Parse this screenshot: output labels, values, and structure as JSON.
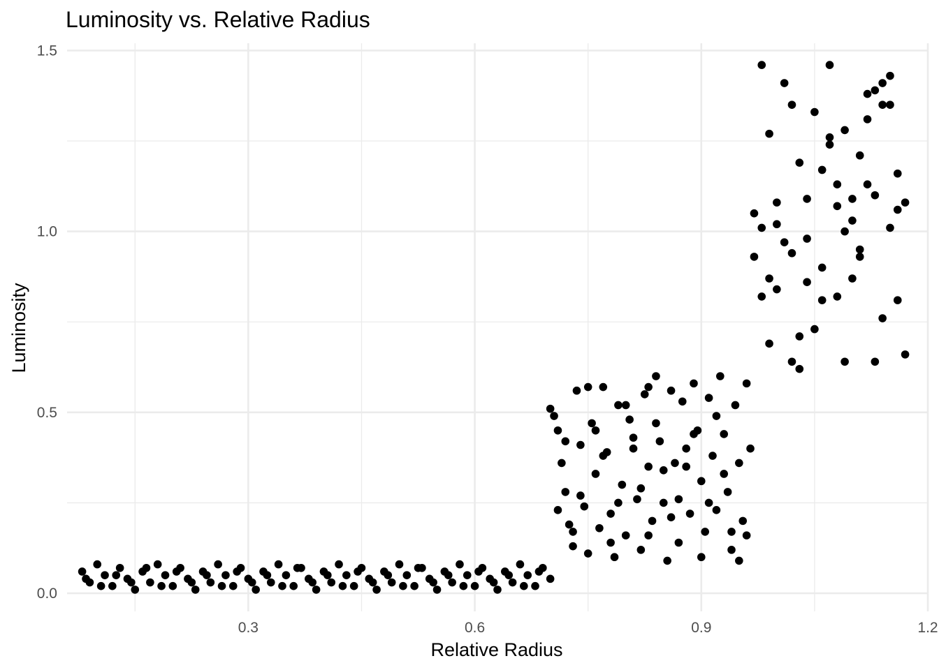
{
  "chart_data": {
    "type": "scatter",
    "title": "Luminosity vs. Relative Radius",
    "xlabel": "Relative Radius",
    "ylabel": "Luminosity",
    "xlim": [
      0.06,
      1.2
    ],
    "ylim": [
      -0.05,
      1.52
    ],
    "x_ticks": [
      0.3,
      0.6,
      0.9,
      1.2
    ],
    "x_tick_labels": [
      "0.3",
      "0.6",
      "0.9",
      "1.2"
    ],
    "y_ticks": [
      0.0,
      0.5,
      1.0,
      1.5
    ],
    "y_tick_labels": [
      "0.0",
      "0.5",
      "1.0",
      "1.5"
    ],
    "grid": true,
    "legend": "none",
    "point_color": "#000000",
    "series": [
      {
        "points": [
          [
            0.08,
            0.06
          ],
          [
            0.09,
            0.03
          ],
          [
            0.1,
            0.08
          ],
          [
            0.11,
            0.05
          ],
          [
            0.12,
            0.02
          ],
          [
            0.13,
            0.07
          ],
          [
            0.14,
            0.04
          ],
          [
            0.15,
            0.01
          ],
          [
            0.16,
            0.06
          ],
          [
            0.17,
            0.03
          ],
          [
            0.18,
            0.08
          ],
          [
            0.19,
            0.05
          ],
          [
            0.2,
            0.02
          ],
          [
            0.21,
            0.07
          ],
          [
            0.22,
            0.04
          ],
          [
            0.23,
            0.01
          ],
          [
            0.24,
            0.06
          ],
          [
            0.25,
            0.03
          ],
          [
            0.26,
            0.08
          ],
          [
            0.27,
            0.05
          ],
          [
            0.28,
            0.02
          ],
          [
            0.29,
            0.07
          ],
          [
            0.3,
            0.04
          ],
          [
            0.31,
            0.01
          ],
          [
            0.32,
            0.06
          ],
          [
            0.33,
            0.03
          ],
          [
            0.34,
            0.08
          ],
          [
            0.35,
            0.05
          ],
          [
            0.36,
            0.02
          ],
          [
            0.37,
            0.07
          ],
          [
            0.38,
            0.04
          ],
          [
            0.39,
            0.01
          ],
          [
            0.4,
            0.06
          ],
          [
            0.41,
            0.03
          ],
          [
            0.42,
            0.08
          ],
          [
            0.43,
            0.05
          ],
          [
            0.44,
            0.02
          ],
          [
            0.45,
            0.07
          ],
          [
            0.46,
            0.04
          ],
          [
            0.47,
            0.01
          ],
          [
            0.48,
            0.06
          ],
          [
            0.49,
            0.03
          ],
          [
            0.5,
            0.08
          ],
          [
            0.51,
            0.05
          ],
          [
            0.52,
            0.02
          ],
          [
            0.53,
            0.07
          ],
          [
            0.54,
            0.04
          ],
          [
            0.55,
            0.01
          ],
          [
            0.56,
            0.06
          ],
          [
            0.57,
            0.03
          ],
          [
            0.58,
            0.08
          ],
          [
            0.59,
            0.05
          ],
          [
            0.6,
            0.02
          ],
          [
            0.61,
            0.07
          ],
          [
            0.62,
            0.04
          ],
          [
            0.63,
            0.01
          ],
          [
            0.64,
            0.06
          ],
          [
            0.65,
            0.03
          ],
          [
            0.66,
            0.08
          ],
          [
            0.67,
            0.05
          ],
          [
            0.68,
            0.02
          ],
          [
            0.69,
            0.07
          ],
          [
            0.7,
            0.04
          ],
          [
            0.085,
            0.04
          ],
          [
            0.105,
            0.02
          ],
          [
            0.125,
            0.05
          ],
          [
            0.145,
            0.03
          ],
          [
            0.165,
            0.07
          ],
          [
            0.185,
            0.02
          ],
          [
            0.205,
            0.06
          ],
          [
            0.225,
            0.03
          ],
          [
            0.245,
            0.05
          ],
          [
            0.265,
            0.02
          ],
          [
            0.285,
            0.06
          ],
          [
            0.305,
            0.03
          ],
          [
            0.325,
            0.05
          ],
          [
            0.345,
            0.02
          ],
          [
            0.365,
            0.07
          ],
          [
            0.385,
            0.03
          ],
          [
            0.405,
            0.05
          ],
          [
            0.425,
            0.02
          ],
          [
            0.445,
            0.06
          ],
          [
            0.465,
            0.03
          ],
          [
            0.485,
            0.05
          ],
          [
            0.505,
            0.02
          ],
          [
            0.525,
            0.07
          ],
          [
            0.545,
            0.03
          ],
          [
            0.565,
            0.05
          ],
          [
            0.585,
            0.02
          ],
          [
            0.605,
            0.06
          ],
          [
            0.625,
            0.03
          ],
          [
            0.645,
            0.05
          ],
          [
            0.665,
            0.02
          ],
          [
            0.685,
            0.06
          ],
          [
            0.7,
            0.51
          ],
          [
            0.705,
            0.49
          ],
          [
            0.71,
            0.45
          ],
          [
            0.715,
            0.36
          ],
          [
            0.72,
            0.28
          ],
          [
            0.725,
            0.19
          ],
          [
            0.73,
            0.13
          ],
          [
            0.735,
            0.56
          ],
          [
            0.74,
            0.41
          ],
          [
            0.745,
            0.24
          ],
          [
            0.75,
            0.11
          ],
          [
            0.755,
            0.47
          ],
          [
            0.76,
            0.33
          ],
          [
            0.765,
            0.18
          ],
          [
            0.77,
            0.57
          ],
          [
            0.775,
            0.39
          ],
          [
            0.78,
            0.22
          ],
          [
            0.785,
            0.1
          ],
          [
            0.79,
            0.52
          ],
          [
            0.795,
            0.3
          ],
          [
            0.8,
            0.16
          ],
          [
            0.805,
            0.48
          ],
          [
            0.81,
            0.43
          ],
          [
            0.815,
            0.26
          ],
          [
            0.82,
            0.12
          ],
          [
            0.825,
            0.55
          ],
          [
            0.83,
            0.35
          ],
          [
            0.835,
            0.2
          ],
          [
            0.84,
            0.6
          ],
          [
            0.845,
            0.42
          ],
          [
            0.85,
            0.25
          ],
          [
            0.855,
            0.09
          ],
          [
            0.86,
            0.56
          ],
          [
            0.865,
            0.36
          ],
          [
            0.87,
            0.14
          ],
          [
            0.875,
            0.53
          ],
          [
            0.88,
            0.4
          ],
          [
            0.885,
            0.22
          ],
          [
            0.89,
            0.58
          ],
          [
            0.895,
            0.45
          ],
          [
            0.9,
            0.31
          ],
          [
            0.905,
            0.17
          ],
          [
            0.91,
            0.54
          ],
          [
            0.915,
            0.38
          ],
          [
            0.92,
            0.23
          ],
          [
            0.925,
            0.6
          ],
          [
            0.93,
            0.44
          ],
          [
            0.935,
            0.28
          ],
          [
            0.94,
            0.12
          ],
          [
            0.945,
            0.52
          ],
          [
            0.95,
            0.36
          ],
          [
            0.955,
            0.2
          ],
          [
            0.96,
            0.58
          ],
          [
            0.965,
            0.4
          ],
          [
            0.72,
            0.42
          ],
          [
            0.74,
            0.27
          ],
          [
            0.76,
            0.45
          ],
          [
            0.78,
            0.14
          ],
          [
            0.8,
            0.52
          ],
          [
            0.82,
            0.29
          ],
          [
            0.84,
            0.47
          ],
          [
            0.86,
            0.21
          ],
          [
            0.88,
            0.35
          ],
          [
            0.9,
            0.1
          ],
          [
            0.92,
            0.49
          ],
          [
            0.94,
            0.17
          ],
          [
            0.73,
            0.17
          ],
          [
            0.75,
            0.57
          ],
          [
            0.77,
            0.38
          ],
          [
            0.79,
            0.25
          ],
          [
            0.81,
            0.4
          ],
          [
            0.83,
            0.16
          ],
          [
            0.85,
            0.34
          ],
          [
            0.87,
            0.26
          ],
          [
            0.89,
            0.44
          ],
          [
            0.91,
            0.25
          ],
          [
            0.93,
            0.33
          ],
          [
            0.95,
            0.09
          ],
          [
            0.96,
            0.16
          ],
          [
            0.71,
            0.23
          ],
          [
            0.83,
            0.57
          ],
          [
            0.97,
            0.93
          ],
          [
            0.97,
            1.05
          ],
          [
            0.98,
            1.46
          ],
          [
            0.98,
            0.82
          ],
          [
            0.99,
            1.27
          ],
          [
            0.99,
            0.69
          ],
          [
            1.0,
            1.02
          ],
          [
            1.0,
            0.84
          ],
          [
            1.01,
            1.41
          ],
          [
            1.01,
            0.97
          ],
          [
            1.02,
            1.35
          ],
          [
            1.02,
            0.64
          ],
          [
            1.03,
            1.19
          ],
          [
            1.03,
            0.62
          ],
          [
            1.04,
            1.09
          ],
          [
            1.04,
            0.86
          ],
          [
            1.05,
            1.33
          ],
          [
            1.05,
            0.73
          ],
          [
            1.06,
            1.17
          ],
          [
            1.06,
            0.9
          ],
          [
            1.07,
            1.46
          ],
          [
            1.07,
            1.24
          ],
          [
            1.08,
            1.07
          ],
          [
            1.08,
            0.82
          ],
          [
            1.09,
            1.28
          ],
          [
            1.09,
            0.64
          ],
          [
            1.1,
            1.03
          ],
          [
            1.1,
            0.87
          ],
          [
            1.11,
            1.21
          ],
          [
            1.11,
            0.95
          ],
          [
            1.12,
            1.38
          ],
          [
            1.12,
            1.13
          ],
          [
            1.13,
            0.64
          ],
          [
            1.13,
            1.1
          ],
          [
            1.14,
            1.35
          ],
          [
            1.14,
            0.76
          ],
          [
            1.15,
            1.43
          ],
          [
            1.15,
            1.01
          ],
          [
            1.16,
            0.81
          ],
          [
            1.16,
            1.16
          ],
          [
            1.17,
            1.08
          ],
          [
            1.17,
            0.66
          ],
          [
            0.98,
            1.01
          ],
          [
            1.0,
            1.08
          ],
          [
            1.02,
            0.94
          ],
          [
            1.04,
            0.98
          ],
          [
            1.06,
            0.81
          ],
          [
            1.08,
            1.13
          ],
          [
            1.1,
            1.09
          ],
          [
            1.12,
            1.31
          ],
          [
            1.14,
            1.41
          ],
          [
            1.16,
            1.06
          ],
          [
            0.99,
            0.87
          ],
          [
            1.03,
            0.71
          ],
          [
            1.07,
            1.26
          ],
          [
            1.11,
            0.93
          ],
          [
            1.15,
            1.35
          ],
          [
            1.13,
            1.39
          ],
          [
            1.09,
            1.0
          ]
        ]
      }
    ]
  }
}
